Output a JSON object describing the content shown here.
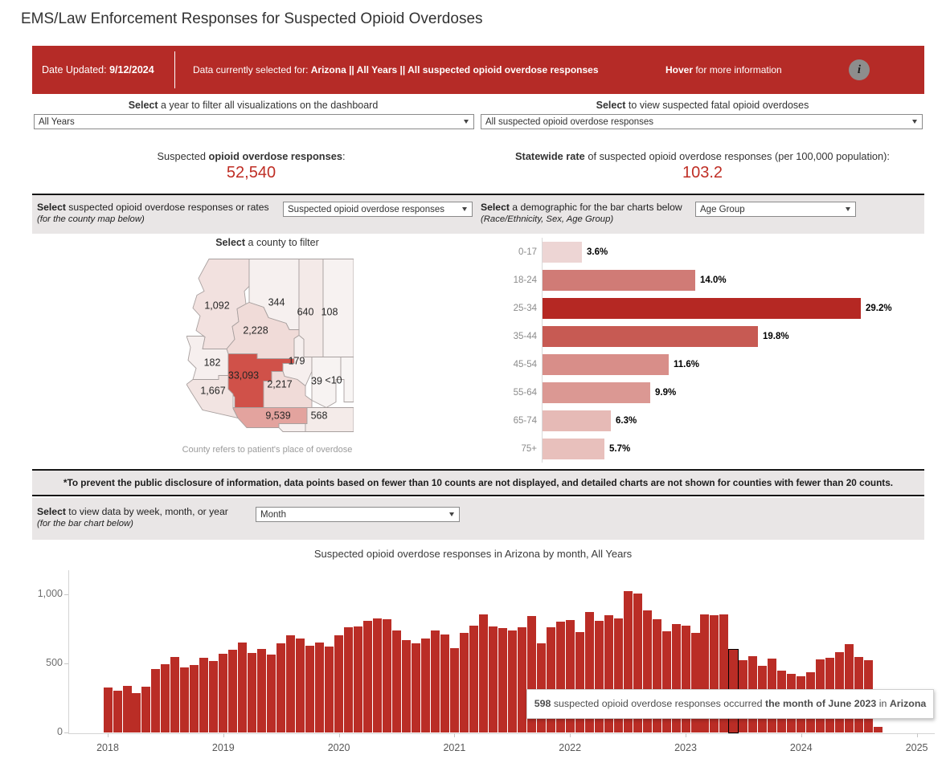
{
  "title": "EMS/Law Enforcement Responses for Suspected Opioid Overdoses",
  "banner": {
    "date_label": "Date Updated: ",
    "date_value": "9/12/2024",
    "selected_prefix": "Data currently selected for: ",
    "selected_value": "Arizona ||  All Years || All suspected opioid overdose responses",
    "hover_bold": "Hover",
    "hover_rest": " for more information",
    "info_glyph": "i"
  },
  "filters": {
    "year": {
      "bold": "Select",
      "rest": " a year to filter all visualizations on the dashboard",
      "value": "All Years"
    },
    "fatal": {
      "bold": "Select",
      "rest": " to view suspected fatal opioid overdoses",
      "value": "All suspected opioid overdose responses"
    }
  },
  "stats": {
    "left": {
      "pre": "Suspected ",
      "bold": "opioid overdose responses",
      "post": ":",
      "value": "52,540"
    },
    "right": {
      "bold": "Statewide rate",
      "rest": " of suspected opioid overdose responses (per 100,000 population):",
      "value": "103.2"
    }
  },
  "sections": {
    "map": {
      "bold": "Select",
      "rest": " suspected opioid overdose responses or rates",
      "sub": "(for the county map below)",
      "dropdown": "Suspected opioid overdose responses"
    },
    "demo": {
      "bold": "Select",
      "rest": " a demographic for the bar charts below",
      "sub": "(Race/Ethnicity, Sex, Age Group)",
      "dropdown": "Age Group"
    },
    "time": {
      "bold": "Select",
      "rest": " to view data by week, month, or year",
      "sub": "(for the bar chart below)",
      "dropdown": "Month"
    }
  },
  "map": {
    "title_bold": "Select",
    "title_rest": " a county to filter",
    "caption": "County refers to patient's place of overdose"
  },
  "disclaimer": "*To prevent the public disclosure of information, data points based on fewer than 10 counts are not displayed, and detailed charts are not shown for counties with fewer than 20 counts.",
  "chart_data": [
    {
      "type": "choropleth_map",
      "title": "Suspected opioid overdose responses by county (Arizona)",
      "counties": [
        {
          "name": "Mohave",
          "label": "1,092",
          "color": "#f2e1df"
        },
        {
          "name": "Coconino",
          "label": "344",
          "color": "#f6f0ef"
        },
        {
          "name": "Navajo",
          "label": "640",
          "color": "#f4eae8"
        },
        {
          "name": "Apache",
          "label": "108",
          "color": "#f7f2f1"
        },
        {
          "name": "Yavapai",
          "label": "2,228",
          "color": "#f0dbd8"
        },
        {
          "name": "La Paz",
          "label": "182",
          "color": "#f6efee"
        },
        {
          "name": "Maricopa",
          "label": "33,093",
          "color": "#d05149"
        },
        {
          "name": "Gila",
          "label": "179",
          "color": "#f6efee"
        },
        {
          "name": "Pinal",
          "label": "2,217",
          "color": "#f0dbd8"
        },
        {
          "name": "Graham",
          "label": "39",
          "color": "#f7f3f2"
        },
        {
          "name": "Greenlee",
          "label": "<10",
          "color": "#f8f5f4"
        },
        {
          "name": "Yuma",
          "label": "1,667",
          "color": "#f2e4e2"
        },
        {
          "name": "Pima",
          "label": "9,539",
          "color": "#e3a39e"
        },
        {
          "name": "Cochise",
          "label": "568",
          "color": "#f4ebe9"
        },
        {
          "name": "Santa Cruz",
          "label": "",
          "color": "#f6efee"
        }
      ]
    },
    {
      "type": "bar",
      "orientation": "horizontal",
      "title": "Suspected opioid overdose responses by Age Group (%)",
      "categories": [
        "0-17",
        "18-24",
        "25-34",
        "35-44",
        "45-54",
        "55-64",
        "65-74",
        "75+"
      ],
      "values": [
        3.6,
        14.0,
        29.2,
        19.8,
        11.6,
        9.9,
        6.3,
        5.7
      ],
      "labels": [
        "3.6%",
        "14.0%",
        "29.2%",
        "19.8%",
        "11.6%",
        "9.9%",
        "6.3%",
        "5.7%"
      ],
      "colors": [
        "#edd5d4",
        "#d07b76",
        "#b52823",
        "#c75a53",
        "#d88e89",
        "#db9893",
        "#e6bab6",
        "#e8c0bc"
      ],
      "xlim": [
        0,
        32
      ]
    },
    {
      "type": "bar",
      "title": "Suspected opioid overdose responses in Arizona by month,  All Years",
      "x_unit": "month",
      "start_month": "2018-01",
      "end_month": "2024-09",
      "ylim": [
        0,
        1160
      ],
      "yticks": [
        {
          "label": "0",
          "value": 0
        },
        {
          "label": "500",
          "value": 500
        },
        {
          "label": "1,000",
          "value": 1000
        }
      ],
      "year_ticks": [
        "2018",
        "2019",
        "2020",
        "2021",
        "2022",
        "2023",
        "2024",
        "2025"
      ],
      "values": [
        322,
        299,
        334,
        286,
        328,
        458,
        492,
        546,
        467,
        488,
        540,
        517,
        566,
        598,
        650,
        573,
        604,
        560,
        643,
        700,
        676,
        627,
        650,
        622,
        700,
        757,
        768,
        805,
        826,
        816,
        739,
        666,
        643,
        681,
        737,
        705,
        608,
        719,
        772,
        854,
        766,
        754,
        737,
        760,
        842,
        643,
        760,
        801,
        813,
        725,
        871,
        807,
        848,
        825,
        1020,
        1005,
        880,
        820,
        730,
        785,
        772,
        719,
        850,
        845,
        850,
        598,
        523,
        552,
        483,
        535,
        448,
        424,
        407,
        436,
        529,
        541,
        581,
        640,
        547,
        523,
        41
      ],
      "highlight": {
        "index": 65,
        "month": "June 2023",
        "value": 598
      },
      "tooltip": {
        "b1": "598",
        "t1": " suspected opioid overdose responses occurred ",
        "b2": "the month of June 2023",
        "t2": " in ",
        "b3": "Arizona"
      }
    }
  ]
}
